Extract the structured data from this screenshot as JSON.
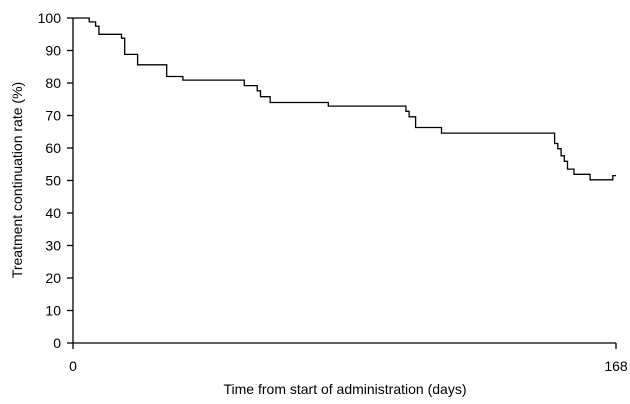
{
  "chart_data": {
    "type": "line",
    "xlabel": "Time from start of administration (days)",
    "ylabel": "Treatment continuation rate (%)",
    "xlim": [
      0,
      168
    ],
    "ylim": [
      0,
      100
    ],
    "xticks": [
      0,
      168
    ],
    "yticks": [
      0,
      10,
      20,
      30,
      40,
      50,
      60,
      70,
      80,
      90,
      100
    ],
    "grid": false,
    "legend": "none",
    "series": [
      {
        "step": "post",
        "x": [
          0,
          5,
          7,
          8,
          15,
          16,
          20,
          29,
          34,
          53,
          57,
          58,
          61,
          79,
          103,
          104,
          106,
          114,
          149,
          150,
          151,
          152,
          153,
          155,
          160,
          167
        ],
        "y": [
          100,
          98.8,
          97.5,
          95.0,
          93.8,
          88.8,
          85.6,
          82.0,
          80.9,
          79.2,
          77.6,
          75.8,
          74.0,
          72.9,
          71.3,
          69.6,
          66.3,
          64.6,
          61.4,
          59.8,
          57.6,
          55.9,
          53.5,
          51.9,
          50.2,
          51.5
        ]
      }
    ],
    "end_x": 168
  }
}
